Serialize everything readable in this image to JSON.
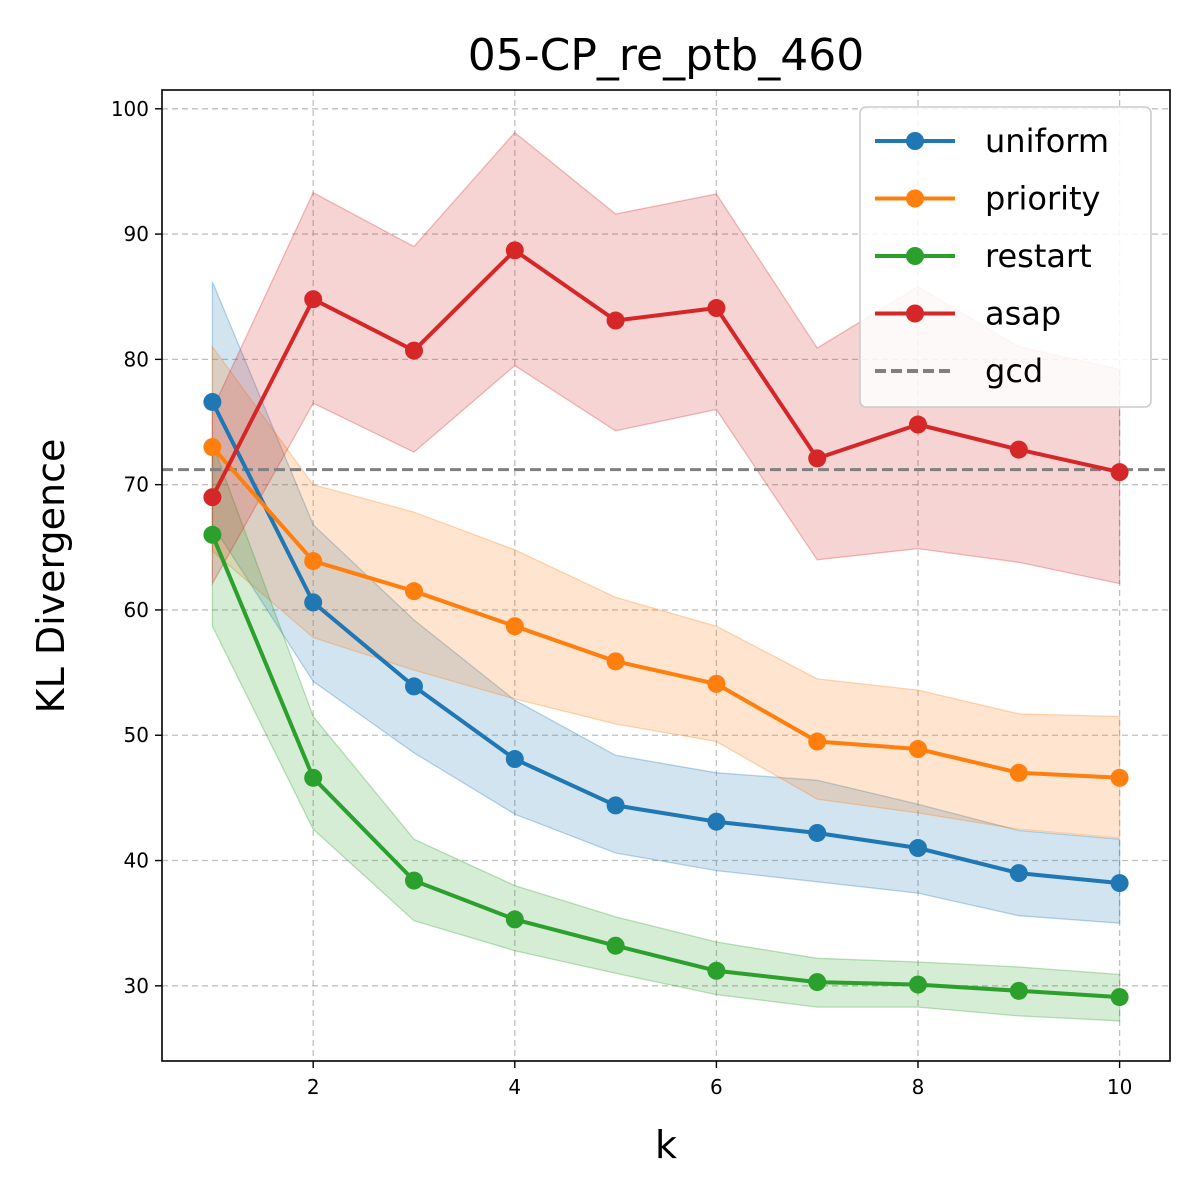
{
  "chart_data": {
    "type": "line",
    "title": "05-CP_re_ptb_460",
    "xlabel": "k",
    "ylabel": "KL Divergence",
    "xlim": [
      0.5,
      10.5
    ],
    "ylim": [
      24,
      101.5
    ],
    "x": [
      1,
      2,
      3,
      4,
      5,
      6,
      7,
      8,
      9,
      10
    ],
    "xticks": [
      2,
      4,
      6,
      8,
      10
    ],
    "yticks": [
      30,
      40,
      50,
      60,
      70,
      80,
      90,
      100
    ],
    "grid": true,
    "legend_position": "top-right",
    "series": [
      {
        "name": "uniform",
        "color": "#1f77b4",
        "values": [
          76.6,
          60.6,
          53.9,
          48.1,
          44.4,
          43.1,
          42.2,
          41.0,
          39.0,
          38.2
        ],
        "upper": [
          86.2,
          66.8,
          59.2,
          52.8,
          48.4,
          47.0,
          46.4,
          44.5,
          42.4,
          41.7
        ],
        "lower": [
          66.8,
          54.3,
          48.6,
          43.7,
          40.6,
          39.2,
          38.3,
          37.4,
          35.6,
          35.0
        ]
      },
      {
        "name": "priority",
        "color": "#ff7f0e",
        "values": [
          73.0,
          63.9,
          61.5,
          58.7,
          55.9,
          54.1,
          49.5,
          48.9,
          47.0,
          46.6
        ],
        "upper": [
          81.0,
          70.0,
          67.8,
          64.8,
          61.0,
          58.7,
          54.5,
          53.6,
          51.7,
          51.5
        ],
        "lower": [
          64.7,
          57.8,
          55.2,
          52.9,
          50.9,
          49.5,
          44.9,
          43.8,
          42.5,
          41.8
        ]
      },
      {
        "name": "restart",
        "color": "#2ca02c",
        "values": [
          66.0,
          46.6,
          38.4,
          35.3,
          33.2,
          31.2,
          30.3,
          30.1,
          29.6,
          29.1
        ],
        "upper": [
          73.3,
          51.5,
          41.7,
          38.0,
          35.5,
          33.5,
          32.2,
          31.9,
          31.5,
          30.9
        ],
        "lower": [
          58.7,
          42.5,
          35.2,
          32.8,
          31.0,
          29.3,
          28.3,
          28.3,
          27.6,
          27.2
        ]
      },
      {
        "name": "asap",
        "color": "#d62728",
        "values": [
          69.0,
          84.8,
          80.7,
          88.7,
          83.1,
          84.1,
          72.1,
          74.8,
          72.8,
          71.0
        ],
        "upper": [
          76.0,
          93.3,
          89.0,
          98.1,
          91.6,
          93.2,
          80.9,
          85.8,
          81.0,
          79.2
        ],
        "lower": [
          62.1,
          76.5,
          72.6,
          79.5,
          74.3,
          76.0,
          64.0,
          64.9,
          63.8,
          62.1
        ]
      }
    ],
    "reference_lines": [
      {
        "name": "gcd",
        "color": "#808080",
        "y": 71.2,
        "style": "dashed"
      }
    ]
  }
}
